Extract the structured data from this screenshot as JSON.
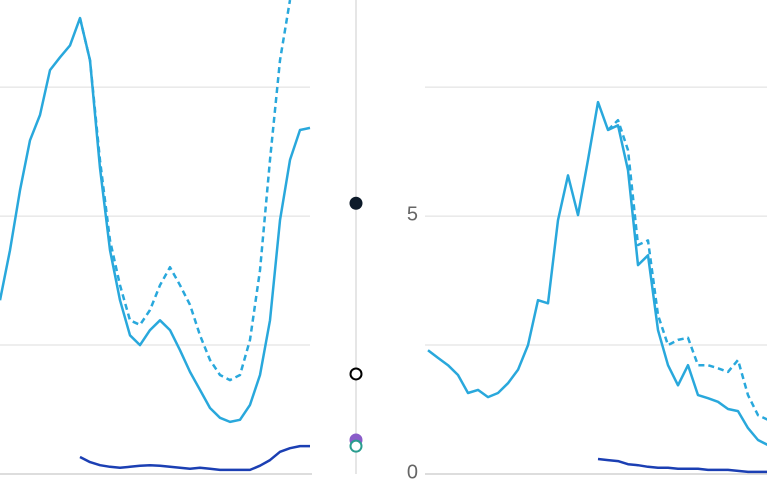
{
  "chart_data": [
    {
      "type": "line",
      "ylim": [
        0,
        9.19
      ],
      "xlim": [
        0,
        31
      ],
      "yticks": [
        {
          "value": 0,
          "label": null
        },
        {
          "value": 2.5,
          "label": null
        },
        {
          "value": 5,
          "label": null
        },
        {
          "value": 7.5,
          "label": null
        }
      ],
      "grid": true,
      "x": [
        0,
        1,
        2,
        3,
        4,
        5,
        6,
        7,
        8,
        9,
        10,
        11,
        12,
        13,
        14,
        15,
        16,
        17,
        18,
        19,
        20,
        21,
        22,
        23,
        24,
        25,
        26,
        27,
        28,
        29,
        30,
        31
      ],
      "series": [
        {
          "color": "#29a8dc",
          "dashed": false,
          "values": [
            3.37,
            4.34,
            5.5,
            6.47,
            6.96,
            7.83,
            8.08,
            8.31,
            8.84,
            8.02,
            5.93,
            4.34,
            3.37,
            2.69,
            2.5,
            2.79,
            2.98,
            2.79,
            2.4,
            1.98,
            1.63,
            1.28,
            1.09,
            1.01,
            1.05,
            1.34,
            1.92,
            2.98,
            4.92,
            6.09,
            6.67,
            6.71
          ]
        },
        {
          "color": "#29a8dc",
          "dashed": true,
          "values": [
            null,
            null,
            null,
            null,
            null,
            null,
            null,
            null,
            8.84,
            8.02,
            6.08,
            4.53,
            3.66,
            2.98,
            2.89,
            3.18,
            3.66,
            4.01,
            3.66,
            3.28,
            2.69,
            2.21,
            1.92,
            1.82,
            1.92,
            2.6,
            3.95,
            6.09,
            8.02,
            9.19,
            null,
            null
          ]
        },
        {
          "color": "#1b3fb3",
          "dashed": false,
          "values": [
            null,
            null,
            null,
            null,
            null,
            null,
            null,
            null,
            0.33,
            0.23,
            0.17,
            0.14,
            0.12,
            0.14,
            0.16,
            0.17,
            0.16,
            0.14,
            0.12,
            0.1,
            0.12,
            0.1,
            0.08,
            0.08,
            0.08,
            0.08,
            0.16,
            0.27,
            0.43,
            0.5,
            0.54,
            0.54
          ]
        }
      ]
    },
    {
      "type": "dots",
      "ylim": [
        0,
        9.19
      ],
      "values": [
        5.25,
        1.94,
        0.66,
        0.54
      ],
      "colors": [
        "#0d1b2a",
        "#000000",
        "#8a5cc9",
        "#2a9d8f"
      ],
      "filled": [
        true,
        false,
        true,
        false
      ]
    },
    {
      "type": "line",
      "ylim": [
        0,
        9.19
      ],
      "xlim": [
        0,
        34
      ],
      "yticks": [
        0,
        {
          "value": 2.5,
          "label": null
        },
        5,
        {
          "value": 7.5,
          "label": null
        }
      ],
      "grid": true,
      "x": [
        0,
        1,
        2,
        3,
        4,
        5,
        6,
        7,
        8,
        9,
        10,
        11,
        12,
        13,
        14,
        15,
        16,
        17,
        18,
        19,
        20,
        21,
        22,
        23,
        24,
        25,
        26,
        27,
        28,
        29,
        30,
        31,
        32,
        33,
        34
      ],
      "series": [
        {
          "color": "#29a8dc",
          "dashed": false,
          "values": [
            2.4,
            2.25,
            2.11,
            1.92,
            1.57,
            1.63,
            1.49,
            1.57,
            1.76,
            2.02,
            2.5,
            3.37,
            3.31,
            4.92,
            5.79,
            5.02,
            6.09,
            7.21,
            6.67,
            6.76,
            5.89,
            4.05,
            4.24,
            2.79,
            2.11,
            1.72,
            2.11,
            1.53,
            1.47,
            1.4,
            1.26,
            1.22,
            0.89,
            0.66,
            0.56
          ]
        },
        {
          "color": "#29a8dc",
          "dashed": true,
          "values": [
            null,
            null,
            null,
            null,
            null,
            null,
            null,
            null,
            null,
            null,
            null,
            null,
            null,
            null,
            null,
            null,
            null,
            null,
            6.67,
            6.86,
            6.28,
            4.44,
            4.53,
            3.08,
            2.5,
            2.6,
            2.64,
            2.11,
            2.11,
            2.05,
            1.98,
            2.21,
            1.53,
            1.14,
            1.05
          ]
        },
        {
          "color": "#1b3fb3",
          "dashed": false,
          "values": [
            null,
            null,
            null,
            null,
            null,
            null,
            null,
            null,
            null,
            null,
            null,
            null,
            null,
            null,
            null,
            null,
            null,
            0.29,
            0.27,
            0.25,
            0.19,
            0.17,
            0.14,
            0.12,
            0.12,
            0.1,
            0.1,
            0.1,
            0.08,
            0.08,
            0.08,
            0.06,
            0.04,
            0.04,
            0.04
          ]
        }
      ]
    }
  ]
}
